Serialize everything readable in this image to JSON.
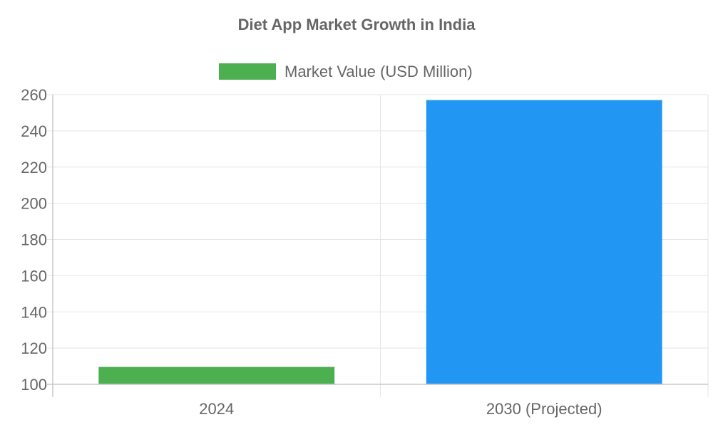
{
  "chart_data": {
    "type": "bar",
    "title": "Diet App Market Growth in India",
    "categories": [
      "2024",
      "2030 (Projected)"
    ],
    "series": [
      {
        "name": "Market Value (USD Million)",
        "values": [
          109.6,
          257
        ],
        "colors": [
          "#4caf50",
          "#2196f3"
        ]
      }
    ],
    "ylim": [
      100,
      260
    ],
    "yticks": [
      "100",
      "120",
      "140",
      "160",
      "180",
      "200",
      "220",
      "240",
      "260"
    ],
    "legend_color": "#4caf50",
    "legend_position": "top",
    "grid": true
  }
}
